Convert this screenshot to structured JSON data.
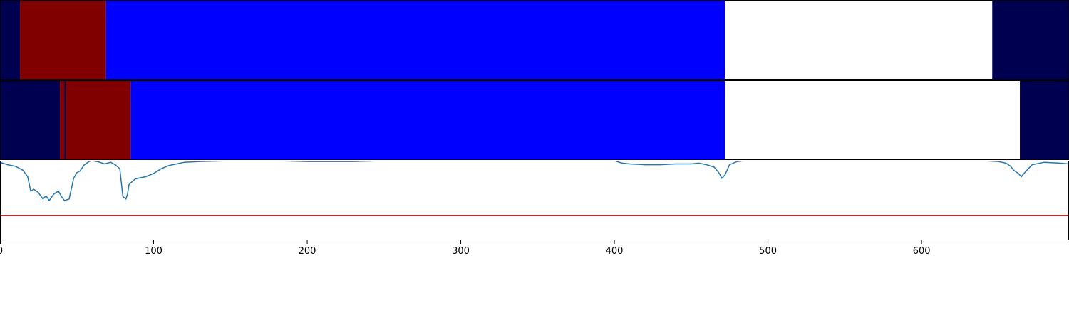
{
  "colors": {
    "navy": "#000050",
    "dark_red": "#800000",
    "blue": "#0000ff",
    "white": "#ffffff",
    "line": "#1f77b4",
    "threshold": "#e31a1c",
    "axis": "#000000"
  },
  "chart_data": [
    {
      "type": "heatmap",
      "panel": "segment-track-1",
      "xlim": [
        0,
        696
      ],
      "segments": [
        {
          "start": 0,
          "end": 13,
          "color": "#000050"
        },
        {
          "start": 13,
          "end": 69,
          "color": "#800000"
        },
        {
          "start": 69,
          "end": 472,
          "color": "#0000ff"
        },
        {
          "start": 472,
          "end": 646,
          "color": "#ffffff"
        },
        {
          "start": 646,
          "end": 696,
          "color": "#000050"
        }
      ]
    },
    {
      "type": "heatmap",
      "panel": "segment-track-2",
      "xlim": [
        0,
        696
      ],
      "segments": [
        {
          "start": 0,
          "end": 39,
          "color": "#000050"
        },
        {
          "start": 39,
          "end": 42,
          "color": "#800000"
        },
        {
          "start": 42,
          "end": 43,
          "color": "#000050"
        },
        {
          "start": 43,
          "end": 85,
          "color": "#800000"
        },
        {
          "start": 85,
          "end": 472,
          "color": "#0000ff"
        },
        {
          "start": 472,
          "end": 664,
          "color": "#ffffff"
        },
        {
          "start": 664,
          "end": 696,
          "color": "#000050"
        }
      ]
    },
    {
      "type": "line",
      "panel": "signal-plot",
      "xlim": [
        0,
        696
      ],
      "ylim": [
        0,
        1
      ],
      "grid": false,
      "x_ticks": [
        0,
        100,
        200,
        300,
        400,
        500,
        600
      ],
      "threshold": 0.31,
      "series": [
        {
          "x": [
            0,
            5,
            10,
            15,
            18,
            20,
            22,
            25,
            28,
            30,
            32,
            35,
            38,
            40,
            42,
            45,
            48,
            50,
            52,
            55,
            58,
            60,
            63,
            65,
            68,
            70,
            72,
            75,
            78,
            80,
            82,
            83,
            84,
            85,
            88,
            90,
            95,
            100,
            105,
            110,
            115,
            120,
            130,
            150,
            180,
            200,
            215,
            230,
            250,
            300,
            350,
            400,
            405,
            410,
            420,
            430,
            440,
            450,
            455,
            460,
            465,
            468,
            470,
            472,
            475,
            480,
            485,
            500,
            550,
            600,
            640,
            650,
            655,
            658,
            660,
            663,
            665,
            668,
            672,
            680,
            690,
            696
          ],
          "values": [
            0.98,
            0.95,
            0.93,
            0.88,
            0.8,
            0.62,
            0.64,
            0.6,
            0.52,
            0.56,
            0.5,
            0.58,
            0.62,
            0.55,
            0.5,
            0.52,
            0.78,
            0.85,
            0.87,
            0.95,
            0.99,
            1.0,
            0.99,
            0.98,
            0.96,
            0.97,
            0.98,
            0.95,
            0.9,
            0.55,
            0.52,
            0.58,
            0.7,
            0.72,
            0.77,
            0.78,
            0.8,
            0.84,
            0.9,
            0.94,
            0.96,
            0.98,
            0.99,
            1.0,
            1.0,
            0.99,
            0.99,
            0.99,
            1.0,
            1.0,
            1.0,
            1.0,
            0.97,
            0.96,
            0.95,
            0.95,
            0.96,
            0.96,
            0.97,
            0.95,
            0.92,
            0.85,
            0.78,
            0.82,
            0.95,
            0.99,
            1.0,
            1.0,
            1.0,
            1.0,
            1.0,
            0.99,
            0.97,
            0.93,
            0.88,
            0.84,
            0.8,
            0.87,
            0.95,
            0.98,
            0.97,
            0.96
          ]
        }
      ]
    }
  ]
}
